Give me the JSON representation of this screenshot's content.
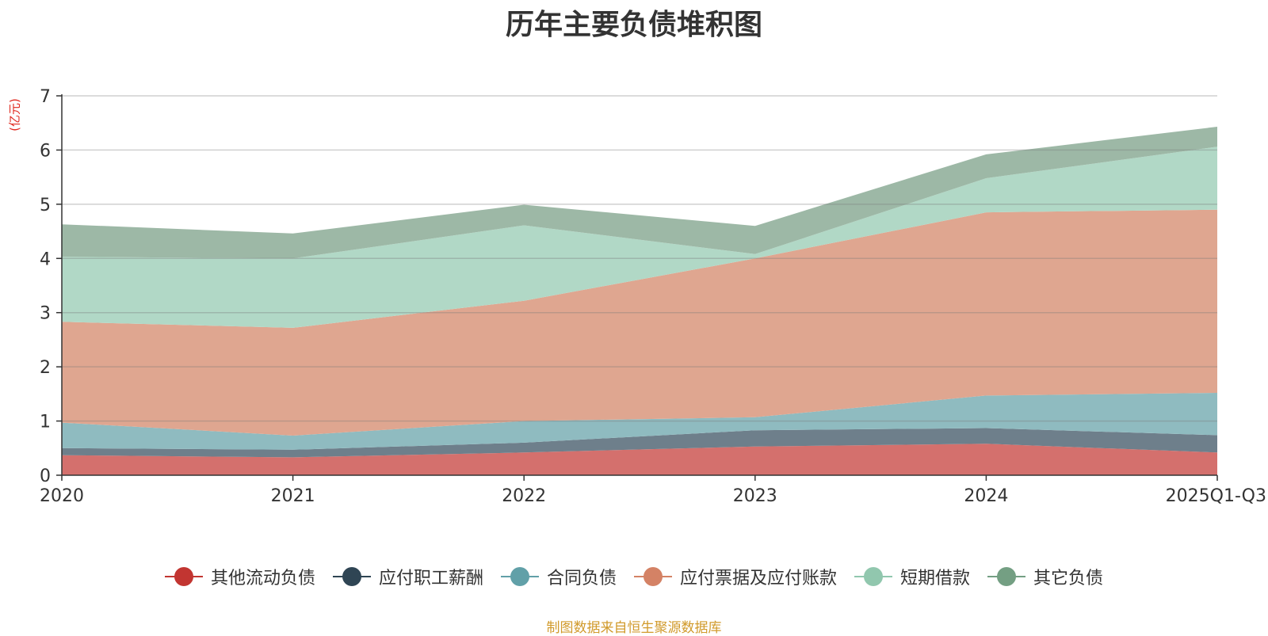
{
  "chart_data": {
    "type": "area",
    "stacked": true,
    "title": "历年主要负债堆积图",
    "ylabel": "(亿元)",
    "xlabel": "",
    "categories": [
      "2020",
      "2021",
      "2022",
      "2023",
      "2024",
      "2025Q1-Q3"
    ],
    "ylim": [
      0,
      7
    ],
    "yticks": [
      0,
      1,
      2,
      3,
      4,
      5,
      6,
      7
    ],
    "grid": true,
    "legend_position": "bottom",
    "series": [
      {
        "name": "其他流动负债",
        "color": "#c23531",
        "area_color": "#d4706d",
        "values": [
          0.37,
          0.33,
          0.42,
          0.53,
          0.58,
          0.42
        ]
      },
      {
        "name": "应付职工薪酬",
        "color": "#2f4554",
        "area_color": "#6e7f8b",
        "values": [
          0.13,
          0.14,
          0.18,
          0.3,
          0.29,
          0.32
        ]
      },
      {
        "name": "合同负债",
        "color": "#61a0a8",
        "area_color": "#8fbbc0",
        "values": [
          0.47,
          0.26,
          0.4,
          0.24,
          0.6,
          0.78
        ]
      },
      {
        "name": "应付票据及应付账款",
        "color": "#d48265",
        "area_color": "#dfa690",
        "values": [
          1.86,
          1.99,
          2.22,
          2.93,
          3.38,
          3.38
        ]
      },
      {
        "name": "短期借款",
        "color": "#91c7ae",
        "area_color": "#b1d8c6",
        "values": [
          1.2,
          1.28,
          1.39,
          0.08,
          0.63,
          1.16
        ]
      },
      {
        "name": "其它负债",
        "color": "#749f83",
        "area_color": "#9db8a6",
        "values": [
          0.6,
          0.46,
          0.38,
          0.52,
          0.44,
          0.37
        ]
      }
    ]
  },
  "source_text": "制图数据来自恒生聚源数据库"
}
